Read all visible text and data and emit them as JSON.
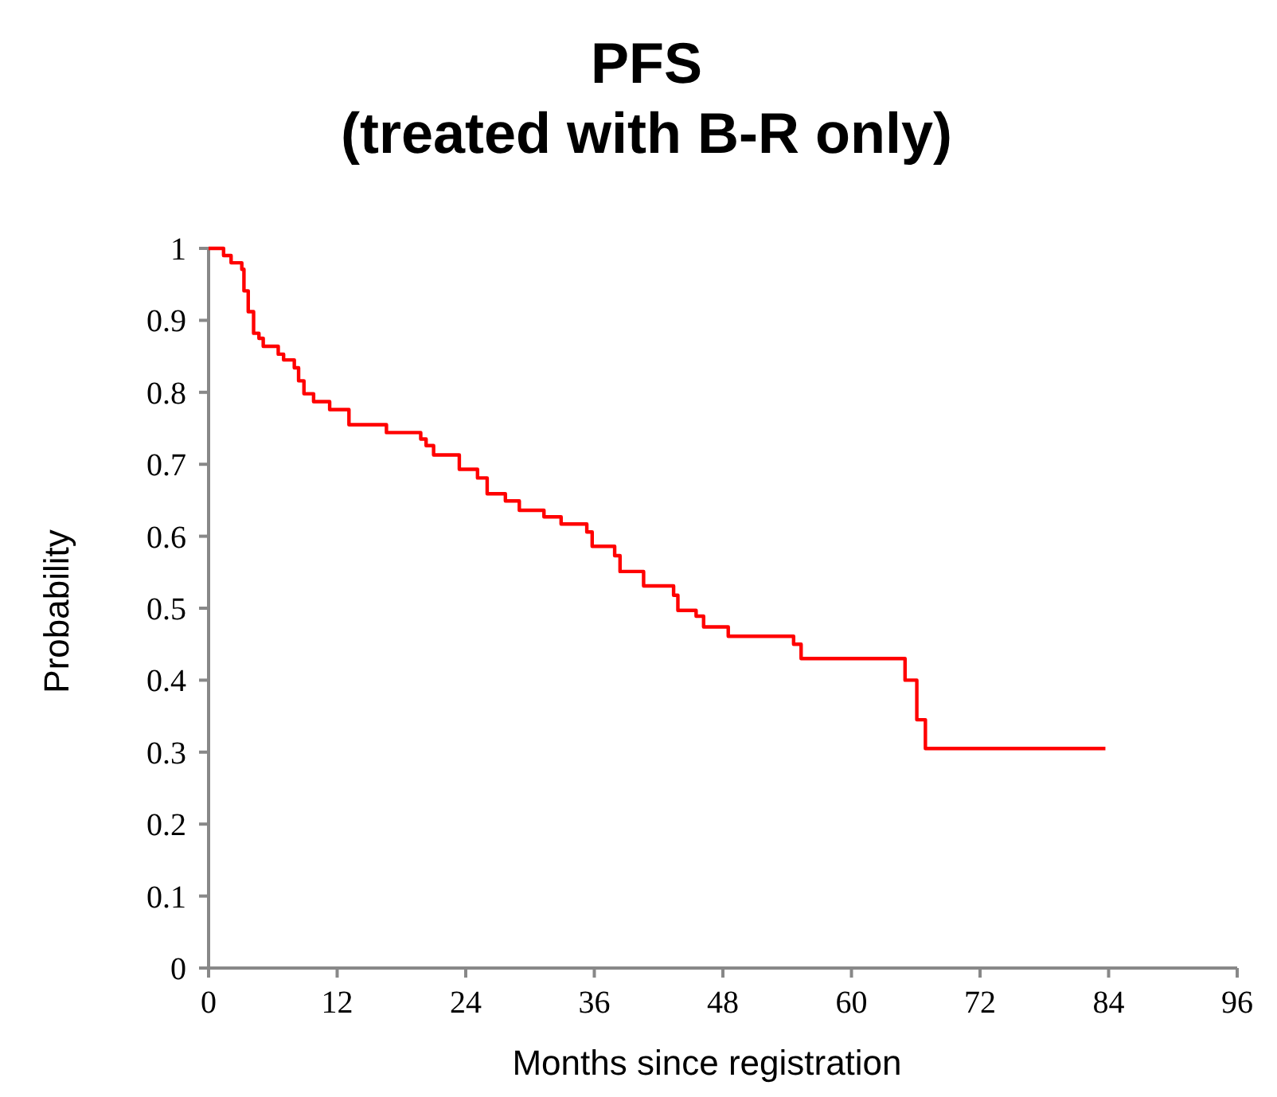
{
  "chart_data": {
    "type": "step",
    "title": "PFS\n(treated with B-R only)",
    "xlabel": "Months since registration",
    "ylabel": "Probability",
    "xlim": [
      0,
      96
    ],
    "xticks": [
      0,
      12,
      24,
      36,
      48,
      60,
      72,
      84,
      96
    ],
    "ylim": [
      0,
      1
    ],
    "yticks": [
      0,
      0.1,
      0.2,
      0.3,
      0.4,
      0.5,
      0.6,
      0.7,
      0.8,
      0.9,
      1
    ],
    "grid": false,
    "line_style": "solid",
    "series": [
      {
        "color": "#ff0000",
        "x": [
          0,
          1.4,
          2.1,
          3.1,
          3.3,
          3.7,
          4.2,
          4.7,
          5.1,
          6.5,
          7.0,
          8.0,
          8.4,
          8.9,
          9.8,
          11.3,
          13.1,
          16.6,
          19.8,
          20.3,
          21.0,
          23.4,
          25.1,
          26.0,
          27.7,
          29.0,
          31.3,
          32.9,
          35.3,
          35.8,
          37.9,
          38.4,
          40.6,
          43.4,
          43.8,
          45.5,
          46.2,
          48.5,
          54.6,
          55.3,
          65.0,
          66.1,
          66.9,
          83.7
        ],
        "values": [
          1,
          0.99,
          0.98,
          0.971,
          0.941,
          0.912,
          0.882,
          0.875,
          0.864,
          0.853,
          0.845,
          0.834,
          0.816,
          0.798,
          0.787,
          0.776,
          0.755,
          0.744,
          0.735,
          0.726,
          0.713,
          0.693,
          0.681,
          0.659,
          0.649,
          0.636,
          0.627,
          0.617,
          0.606,
          0.586,
          0.573,
          0.551,
          0.531,
          0.518,
          0.497,
          0.489,
          0.474,
          0.461,
          0.45,
          0.43,
          0.4,
          0.345,
          0.305,
          0.305
        ]
      }
    ]
  }
}
